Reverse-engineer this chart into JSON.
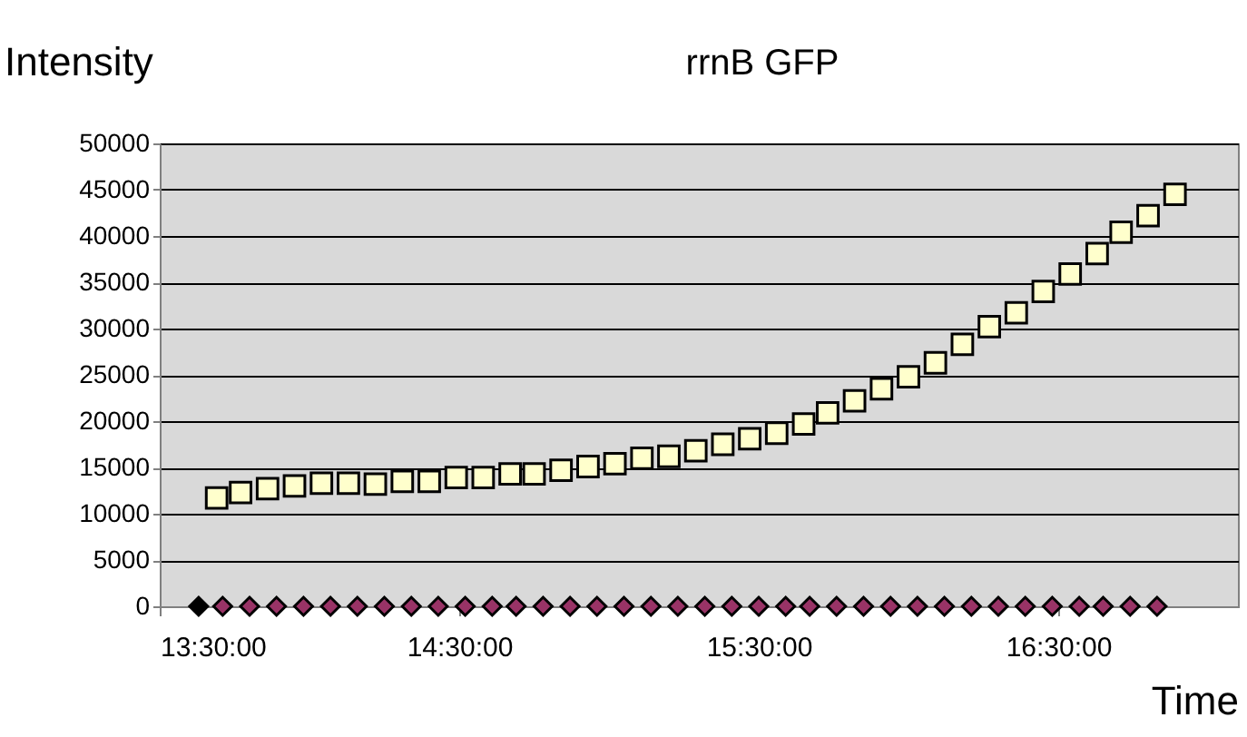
{
  "chart_data": {
    "type": "scatter",
    "title": "rrnB GFP",
    "xlabel": "Time",
    "ylabel": "Intensity",
    "xlim": [
      13.5,
      17.1
    ],
    "xticks": [
      {
        "value": 13.5,
        "label": "13:30:00"
      },
      {
        "value": 14.5,
        "label": "14:30:00"
      },
      {
        "value": 15.5,
        "label": "15:30:00"
      },
      {
        "value": 16.5,
        "label": "16:30:00"
      }
    ],
    "ylim": [
      0,
      50000
    ],
    "yticks": [
      0,
      5000,
      10000,
      15000,
      20000,
      25000,
      30000,
      35000,
      40000,
      45000,
      50000
    ],
    "grid": "y",
    "series": [
      {
        "marker": "square",
        "color": "#ffffcc",
        "x": [
          13.69,
          13.77,
          13.86,
          13.95,
          14.04,
          14.13,
          14.22,
          14.31,
          14.4,
          14.49,
          14.58,
          14.67,
          14.75,
          14.84,
          14.93,
          15.02,
          15.11,
          15.2,
          15.29,
          15.38,
          15.47,
          15.56,
          15.65,
          15.73,
          15.82,
          15.91,
          16.0,
          16.09,
          16.18,
          16.27,
          16.36,
          16.45,
          16.54,
          16.63,
          16.71,
          16.8,
          16.89
        ],
        "values": [
          11700,
          12300,
          12700,
          13000,
          13300,
          13300,
          13200,
          13500,
          13500,
          13900,
          13900,
          14300,
          14300,
          14700,
          15100,
          15400,
          16000,
          16200,
          16800,
          17500,
          18100,
          18700,
          19700,
          20900,
          22200,
          23500,
          24800,
          26300,
          28300,
          30200,
          31700,
          34000,
          35900,
          38100,
          40400,
          42200,
          44500
        ]
      },
      {
        "marker": "diamond",
        "color": "#993366",
        "colors": [
          "#000000",
          null,
          null,
          null,
          null,
          null,
          null,
          null,
          null,
          null,
          null,
          null,
          null,
          null,
          null,
          null,
          null,
          null,
          null,
          null,
          null,
          null,
          null,
          null,
          null,
          null,
          null,
          null,
          null,
          null,
          null,
          null,
          null,
          null,
          null,
          null,
          null
        ],
        "x": [
          13.63,
          13.71,
          13.8,
          13.89,
          13.98,
          14.07,
          14.16,
          14.25,
          14.34,
          14.43,
          14.52,
          14.61,
          14.69,
          14.78,
          14.87,
          14.96,
          15.05,
          15.14,
          15.23,
          15.32,
          15.41,
          15.5,
          15.59,
          15.67,
          15.76,
          15.85,
          15.94,
          16.03,
          16.12,
          16.21,
          16.3,
          16.39,
          16.48,
          16.57,
          16.65,
          16.74,
          16.83
        ],
        "values": [
          0,
          0,
          0,
          0,
          0,
          0,
          0,
          0,
          0,
          0,
          0,
          0,
          0,
          0,
          0,
          0,
          0,
          0,
          0,
          0,
          0,
          0,
          0,
          0,
          0,
          0,
          0,
          0,
          0,
          0,
          0,
          0,
          0,
          0,
          0,
          0,
          0
        ]
      }
    ]
  }
}
